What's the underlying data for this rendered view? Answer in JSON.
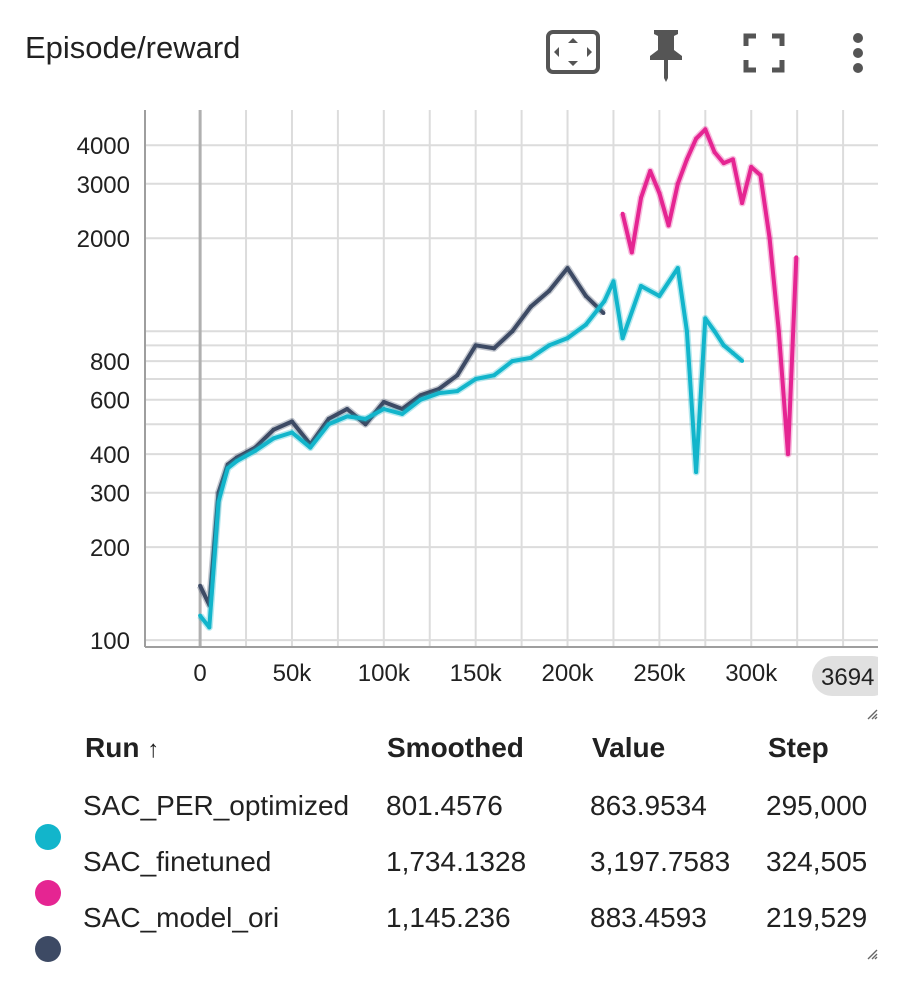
{
  "header": {
    "title": "Episode/reward",
    "icons": [
      "fit-domain-icon",
      "pin-icon",
      "fullscreen-icon",
      "more-vert-icon"
    ]
  },
  "chart_data": {
    "type": "line",
    "title": "Episode/reward",
    "yscale": "log",
    "ylim": [
      95,
      5200
    ],
    "xlim": [
      -30000,
      369000
    ],
    "yticks": [
      100,
      200,
      300,
      400,
      600,
      800,
      2000,
      3000,
      4000
    ],
    "ytick_labels": [
      "100",
      "200",
      "300",
      "400",
      "600",
      "800",
      "2000",
      "3000",
      "4000"
    ],
    "xticks": [
      0,
      50000,
      100000,
      150000,
      200000,
      250000,
      300000
    ],
    "xtick_labels": [
      "0",
      "50k",
      "100k",
      "150k",
      "200k",
      "250k",
      "300k"
    ],
    "x_hover_label": "3694",
    "grid": true,
    "series": [
      {
        "name": "SAC_model_ori",
        "color": "#3d4a64",
        "x": [
          0,
          5000,
          10000,
          15000,
          20000,
          30000,
          40000,
          50000,
          60000,
          70000,
          80000,
          90000,
          100000,
          110000,
          120000,
          130000,
          140000,
          150000,
          160000,
          170000,
          180000,
          190000,
          200000,
          210000,
          219529
        ],
        "values": [
          150,
          130,
          300,
          370,
          390,
          420,
          480,
          510,
          430,
          520,
          560,
          500,
          590,
          560,
          620,
          650,
          720,
          900,
          880,
          1000,
          1200,
          1350,
          1600,
          1300,
          1145.236
        ]
      },
      {
        "name": "SAC_PER_optimized",
        "color": "#12b5cb",
        "x": [
          0,
          5000,
          10000,
          15000,
          20000,
          30000,
          40000,
          50000,
          60000,
          70000,
          80000,
          90000,
          100000,
          110000,
          120000,
          130000,
          140000,
          150000,
          160000,
          170000,
          180000,
          190000,
          200000,
          210000,
          220000,
          225000,
          230000,
          240000,
          250000,
          260000,
          265000,
          270000,
          275000,
          280000,
          285000,
          290000,
          295000
        ],
        "values": [
          120,
          110,
          280,
          360,
          380,
          410,
          450,
          470,
          420,
          500,
          530,
          520,
          560,
          540,
          600,
          630,
          640,
          700,
          720,
          800,
          820,
          900,
          950,
          1050,
          1250,
          1450,
          950,
          1400,
          1300,
          1600,
          1000,
          350,
          1100,
          1000,
          900,
          850,
          801.4576
        ]
      },
      {
        "name": "SAC_finetuned",
        "color": "#e52592",
        "x": [
          230000,
          235000,
          240000,
          245000,
          250000,
          255000,
          260000,
          265000,
          270000,
          275000,
          280000,
          285000,
          290000,
          295000,
          300000,
          305000,
          310000,
          315000,
          320000,
          324505
        ],
        "values": [
          2400,
          1800,
          2700,
          3300,
          2800,
          2200,
          3000,
          3600,
          4200,
          4500,
          3800,
          3500,
          3600,
          2600,
          3400,
          3200,
          2000,
          1000,
          400,
          1734.1328
        ]
      }
    ]
  },
  "table": {
    "headers": {
      "run": "Run",
      "sort_icon": "↑",
      "smoothed": "Smoothed",
      "value": "Value",
      "step": "Step"
    },
    "rows": [
      {
        "run": "SAC_PER_optimized",
        "smoothed": "801.4576",
        "value": "863.9534",
        "step": "295,000",
        "color": "#12b5cb"
      },
      {
        "run": "SAC_finetuned",
        "smoothed": "1,734.1328",
        "value": "3,197.7583",
        "step": "324,505",
        "color": "#e52592"
      },
      {
        "run": "SAC_model_ori",
        "smoothed": "1,145.236",
        "value": "883.4593",
        "step": "219,529",
        "color": "#3d4a64"
      }
    ]
  }
}
